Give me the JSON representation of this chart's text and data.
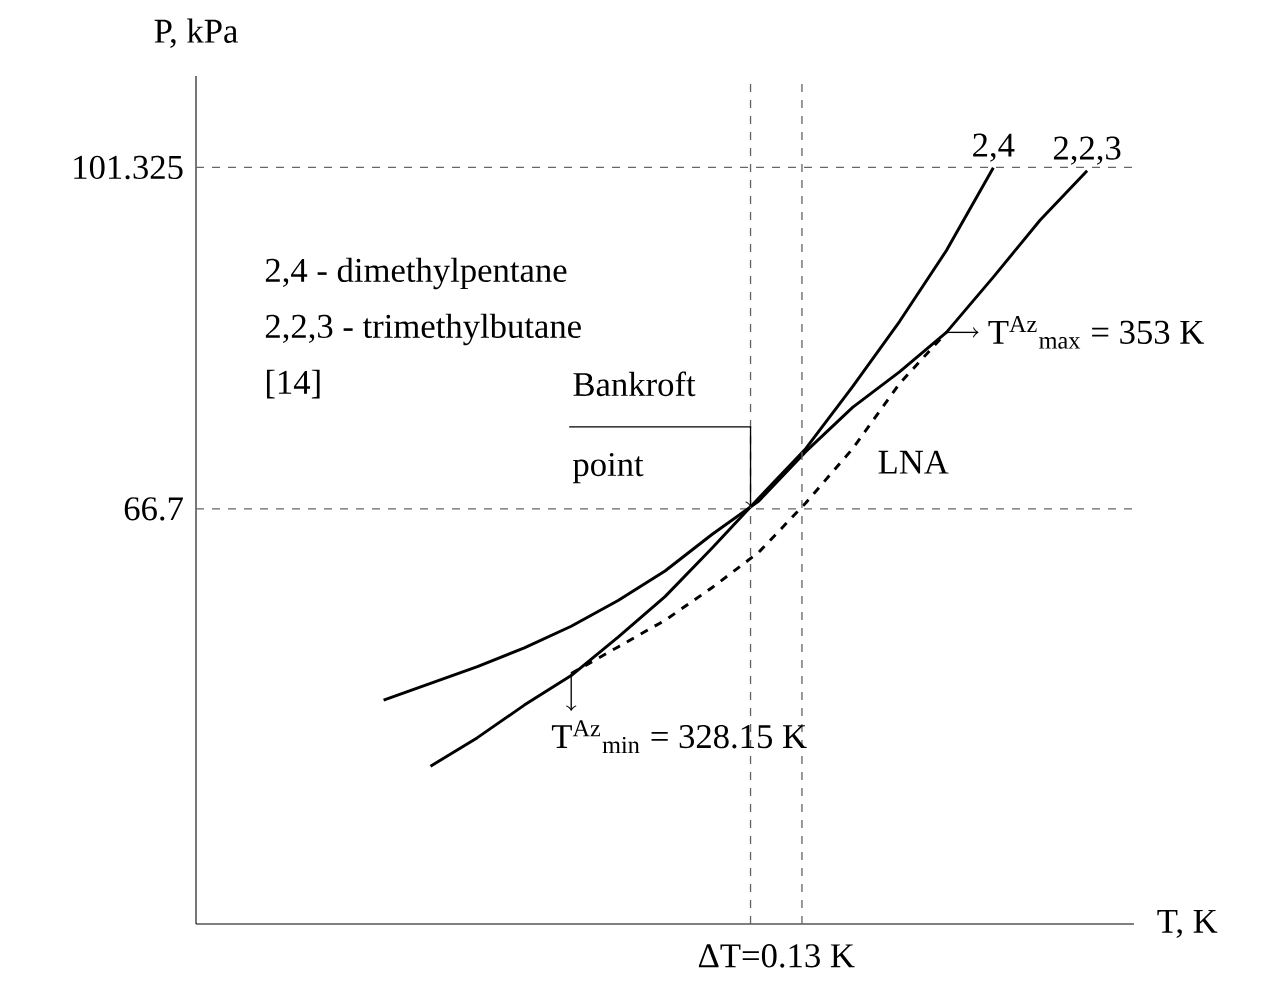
{
  "chart_data": {
    "type": "line",
    "xlabel": "T, K",
    "ylabel": "P, kPa",
    "categories": [
      null,
      null,
      null,
      null,
      null,
      null,
      null,
      null,
      null,
      null,
      null,
      null,
      null,
      null,
      null,
      null,
      null,
      null,
      null,
      null,
      null
    ],
    "ylim": [
      24.6,
      110.6
    ],
    "yticks": [
      66.7,
      101.325
    ],
    "tick_labels": "y",
    "series": [
      {
        "name": "2,4",
        "color": "#000000",
        "values": [
          null,
          null,
          null,
          null,
          null,
          40.6,
          43.5,
          46.8,
          49.8,
          53.7,
          57.8,
          62.7,
          67.8,
          72.8,
          79.1,
          85.7,
          92.9,
          101.3,
          null,
          null,
          null
        ]
      },
      {
        "name": "2,2,3",
        "color": "#000000",
        "values": [
          null,
          null,
          null,
          null,
          47.3,
          49.0,
          50.7,
          52.6,
          54.8,
          57.4,
          60.4,
          64.1,
          67.5,
          72.5,
          77.0,
          80.6,
          84.6,
          90.2,
          96.0,
          101.0,
          null
        ]
      },
      {
        "name": "LNA",
        "color": "#000000",
        "line_style": "dashed",
        "values": [
          null,
          null,
          null,
          null,
          null,
          null,
          null,
          null,
          50.0,
          52.7,
          55.4,
          58.7,
          62.3,
          67.3,
          72.8,
          79.4,
          84.6,
          null,
          null,
          null,
          null
        ]
      }
    ],
    "ref_lines": [
      {
        "axis": "y",
        "value": 66.7,
        "line_style": "dashed"
      },
      {
        "axis": "y",
        "value": 101.325,
        "line_style": "dashed"
      }
    ],
    "annotations": [
      "2,4 - dimethylpentane",
      "2,2,3 - trimethylbutane",
      "[14]",
      "Bankroft point",
      "T$^{Az}$$_{max}$ = 353 K",
      "T$^{Az}$$_{min}$ = 328.15 K",
      "ΔT=0.13 K"
    ]
  }
}
